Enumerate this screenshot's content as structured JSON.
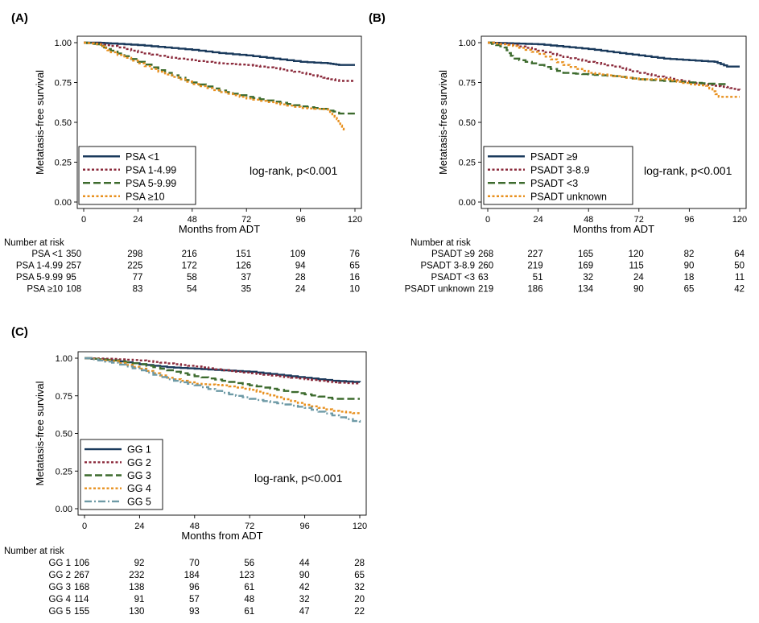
{
  "chart_data": [
    {
      "type": "line",
      "panel": "(A)",
      "ylabel": "Metatasis-free survival",
      "xlabel": "Months from ADT",
      "xlim": [
        0,
        120
      ],
      "ylim": [
        0,
        1
      ],
      "xticks": [
        "0",
        "24",
        "48",
        "72",
        "96",
        "120"
      ],
      "yticks": [
        "0.00",
        "0.25",
        "0.50",
        "0.75",
        "1.00"
      ],
      "annotation": "log-rank, p<0.001",
      "legend_position": "bottom-left",
      "series": [
        {
          "name": "PSA <1",
          "color": "#1a3a5c",
          "dash": "solid",
          "x": [
            0,
            6,
            12,
            24,
            36,
            48,
            60,
            72,
            84,
            96,
            108,
            113,
            120
          ],
          "y": [
            1.0,
            1.0,
            0.995,
            0.985,
            0.97,
            0.955,
            0.935,
            0.92,
            0.9,
            0.88,
            0.87,
            0.86,
            0.86
          ]
        },
        {
          "name": "PSA 1-4.99",
          "color": "#8b2a3b",
          "dash": "dot",
          "x": [
            0,
            6,
            12,
            24,
            36,
            48,
            60,
            72,
            84,
            96,
            106,
            113,
            120
          ],
          "y": [
            1.0,
            0.995,
            0.98,
            0.94,
            0.91,
            0.89,
            0.87,
            0.86,
            0.84,
            0.81,
            0.78,
            0.76,
            0.76
          ]
        },
        {
          "name": "PSA 5-9.99",
          "color": "#3d6b2e",
          "dash": "dash",
          "x": [
            0,
            6,
            12,
            24,
            36,
            48,
            60,
            72,
            84,
            96,
            108,
            113,
            120
          ],
          "y": [
            1.0,
            0.99,
            0.95,
            0.88,
            0.81,
            0.75,
            0.7,
            0.66,
            0.63,
            0.6,
            0.58,
            0.555,
            0.555
          ]
        },
        {
          "name": "PSA ≥10",
          "color": "#e8901e",
          "dash": "dot",
          "x": [
            0,
            6,
            12,
            24,
            36,
            48,
            60,
            72,
            84,
            96,
            108,
            112,
            115
          ],
          "y": [
            1.0,
            0.99,
            0.94,
            0.87,
            0.8,
            0.74,
            0.69,
            0.65,
            0.62,
            0.59,
            0.58,
            0.52,
            0.44
          ]
        }
      ],
      "risk_table": {
        "header": "Number at risk",
        "rows": [
          {
            "label": "PSA <1",
            "values": [
              "350",
              "298",
              "216",
              "151",
              "109",
              "76"
            ]
          },
          {
            "label": "PSA 1-4.99",
            "values": [
              "257",
              "225",
              "172",
              "126",
              "94",
              "65"
            ]
          },
          {
            "label": "PSA 5-9.99",
            "values": [
              "95",
              "77",
              "58",
              "37",
              "28",
              "16"
            ]
          },
          {
            "label": "PSA ≥10",
            "values": [
              "108",
              "83",
              "54",
              "35",
              "24",
              "10"
            ]
          }
        ]
      }
    },
    {
      "type": "line",
      "panel": "(B)",
      "ylabel": "Metatasis-free survival",
      "xlabel": "Months from ADT",
      "xlim": [
        0,
        120
      ],
      "ylim": [
        0,
        1
      ],
      "xticks": [
        "0",
        "24",
        "48",
        "72",
        "96",
        "120"
      ],
      "yticks": [
        "0.00",
        "0.25",
        "0.50",
        "0.75",
        "1.00"
      ],
      "annotation": "log-rank, p<0.001",
      "legend_position": "bottom-left",
      "series": [
        {
          "name": "PSADT ≥9",
          "color": "#1a3a5c",
          "dash": "solid",
          "x": [
            0,
            12,
            24,
            36,
            48,
            60,
            72,
            84,
            96,
            108,
            114,
            120
          ],
          "y": [
            1.0,
            0.995,
            0.99,
            0.975,
            0.96,
            0.94,
            0.92,
            0.9,
            0.89,
            0.88,
            0.85,
            0.85
          ]
        },
        {
          "name": "PSADT 3-8.9",
          "color": "#8b2a3b",
          "dash": "dot",
          "x": [
            0,
            12,
            24,
            36,
            48,
            60,
            72,
            84,
            96,
            108,
            114,
            120
          ],
          "y": [
            1.0,
            0.985,
            0.95,
            0.91,
            0.88,
            0.85,
            0.81,
            0.78,
            0.75,
            0.73,
            0.72,
            0.7
          ]
        },
        {
          "name": "PSADT <3",
          "color": "#3d6b2e",
          "dash": "dash",
          "x": [
            0,
            8,
            12,
            24,
            36,
            48,
            60,
            72,
            84,
            96,
            108,
            114
          ],
          "y": [
            1.0,
            0.97,
            0.9,
            0.86,
            0.81,
            0.8,
            0.79,
            0.77,
            0.76,
            0.75,
            0.74,
            0.74
          ]
        },
        {
          "name": "PSADT unknown",
          "color": "#e8901e",
          "dash": "dot",
          "x": [
            0,
            12,
            24,
            36,
            48,
            60,
            72,
            84,
            96,
            104,
            110,
            120
          ],
          "y": [
            1.0,
            0.98,
            0.93,
            0.86,
            0.81,
            0.79,
            0.77,
            0.77,
            0.74,
            0.73,
            0.66,
            0.66
          ]
        }
      ],
      "risk_table": {
        "header": "Number at risk",
        "rows": [
          {
            "label": "PSADT ≥9",
            "values": [
              "268",
              "227",
              "165",
              "120",
              "82",
              "64"
            ]
          },
          {
            "label": "PSADT 3-8.9",
            "values": [
              "260",
              "219",
              "169",
              "115",
              "90",
              "50"
            ]
          },
          {
            "label": "PSADT <3",
            "values": [
              "63",
              "51",
              "32",
              "24",
              "18",
              "11"
            ]
          },
          {
            "label": "PSADT unknown",
            "values": [
              "219",
              "186",
              "134",
              "90",
              "65",
              "42"
            ]
          }
        ]
      }
    },
    {
      "type": "line",
      "panel": "(C)",
      "ylabel": "Metatasis-free survival",
      "xlabel": "Months from ADT",
      "xlim": [
        0,
        120
      ],
      "ylim": [
        0,
        1
      ],
      "xticks": [
        "0",
        "24",
        "48",
        "72",
        "96",
        "120"
      ],
      "yticks": [
        "0.00",
        "0.25",
        "0.50",
        "0.75",
        "1.00"
      ],
      "annotation": "log-rank, p<0.001",
      "legend_position": "bottom-left",
      "series": [
        {
          "name": "GG 1",
          "color": "#1a3a5c",
          "dash": "solid",
          "x": [
            0,
            12,
            24,
            36,
            48,
            60,
            72,
            84,
            96,
            108,
            120
          ],
          "y": [
            1.0,
            0.985,
            0.96,
            0.94,
            0.93,
            0.92,
            0.91,
            0.89,
            0.87,
            0.85,
            0.84
          ]
        },
        {
          "name": "GG 2",
          "color": "#8b2a3b",
          "dash": "dot",
          "x": [
            0,
            12,
            24,
            36,
            48,
            60,
            72,
            84,
            96,
            108,
            120
          ],
          "y": [
            1.0,
            0.995,
            0.985,
            0.965,
            0.945,
            0.92,
            0.9,
            0.88,
            0.86,
            0.84,
            0.83
          ]
        },
        {
          "name": "GG 3",
          "color": "#3d6b2e",
          "dash": "dash",
          "x": [
            0,
            12,
            24,
            36,
            48,
            60,
            72,
            84,
            96,
            108,
            120
          ],
          "y": [
            1.0,
            0.985,
            0.96,
            0.92,
            0.88,
            0.85,
            0.82,
            0.79,
            0.76,
            0.73,
            0.73
          ]
        },
        {
          "name": "GG 4",
          "color": "#e8901e",
          "dash": "dot",
          "x": [
            0,
            12,
            24,
            36,
            48,
            60,
            72,
            84,
            96,
            108,
            120
          ],
          "y": [
            1.0,
            0.98,
            0.93,
            0.87,
            0.83,
            0.82,
            0.79,
            0.74,
            0.69,
            0.65,
            0.63
          ]
        },
        {
          "name": "GG 5",
          "color": "#6e9aa6",
          "dash": "dashdot",
          "x": [
            0,
            12,
            24,
            36,
            48,
            60,
            72,
            84,
            96,
            108,
            120
          ],
          "y": [
            1.0,
            0.97,
            0.92,
            0.86,
            0.82,
            0.77,
            0.73,
            0.7,
            0.67,
            0.62,
            0.57
          ]
        }
      ],
      "risk_table": {
        "header": "Number at risk",
        "rows": [
          {
            "label": "GG 1",
            "values": [
              "106",
              "92",
              "70",
              "56",
              "44",
              "28"
            ]
          },
          {
            "label": "GG 2",
            "values": [
              "267",
              "232",
              "184",
              "123",
              "90",
              "65"
            ]
          },
          {
            "label": "GG 3",
            "values": [
              "168",
              "138",
              "96",
              "61",
              "42",
              "32"
            ]
          },
          {
            "label": "GG 4",
            "values": [
              "114",
              "91",
              "57",
              "48",
              "32",
              "20"
            ]
          },
          {
            "label": "GG 5",
            "values": [
              "155",
              "130",
              "93",
              "61",
              "47",
              "22"
            ]
          }
        ]
      }
    }
  ]
}
